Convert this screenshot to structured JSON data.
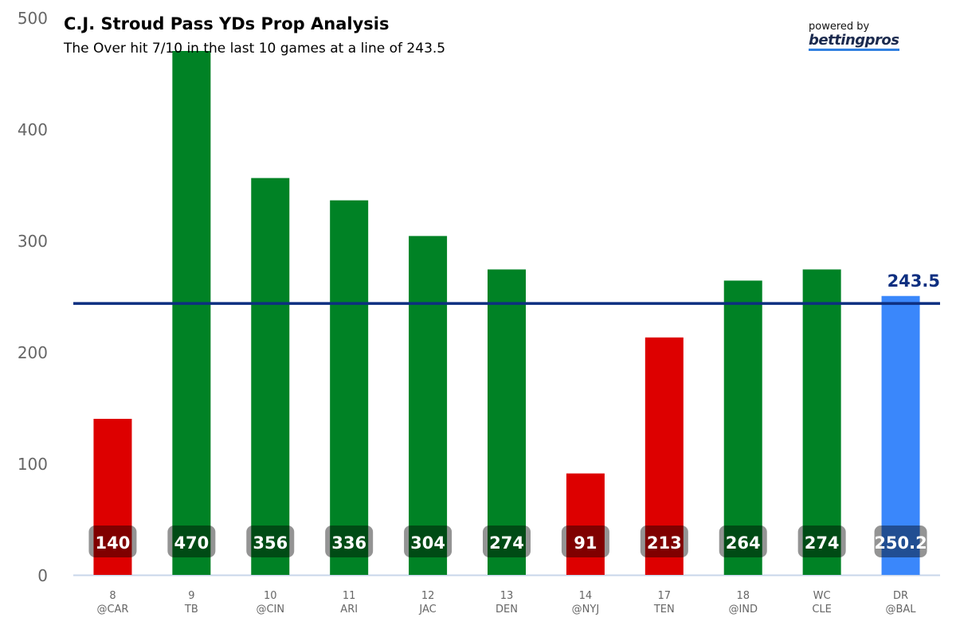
{
  "chart_data": {
    "type": "bar",
    "title": "C.J. Stroud Pass YDs Prop Analysis",
    "subtitle": "The Over hit 7/10 in the last 10 games at a line of 243.5",
    "categories": [
      [
        "8",
        "@CAR"
      ],
      [
        "9",
        "TB"
      ],
      [
        "10",
        "@CIN"
      ],
      [
        "11",
        "ARI"
      ],
      [
        "12",
        "JAC"
      ],
      [
        "13",
        "DEN"
      ],
      [
        "14",
        "@NYJ"
      ],
      [
        "17",
        "TEN"
      ],
      [
        "18",
        "@IND"
      ],
      [
        "WC",
        "CLE"
      ],
      [
        "DR",
        "@BAL"
      ]
    ],
    "values": [
      140,
      470,
      356,
      336,
      304,
      274,
      91,
      213,
      264,
      274,
      250.2
    ],
    "labels": [
      "140",
      "470",
      "356",
      "336",
      "304",
      "274",
      "91",
      "213",
      "264",
      "274",
      "250.2"
    ],
    "results": [
      "under",
      "over",
      "over",
      "over",
      "over",
      "over",
      "under",
      "under",
      "over",
      "over",
      "projection"
    ],
    "colors": {
      "over": "#008225",
      "under": "#dd0000",
      "projection": "#3a87fb",
      "line": "#0d2f80"
    },
    "line": {
      "value": 243.5,
      "label": "243.5"
    },
    "yticks": [
      0,
      100,
      200,
      300,
      400,
      500
    ],
    "ylim": [
      0,
      500
    ],
    "grid": false,
    "xlabel": "",
    "ylabel": ""
  },
  "branding": {
    "powered_by": "powered by",
    "logo_text": "bettingpros"
  }
}
